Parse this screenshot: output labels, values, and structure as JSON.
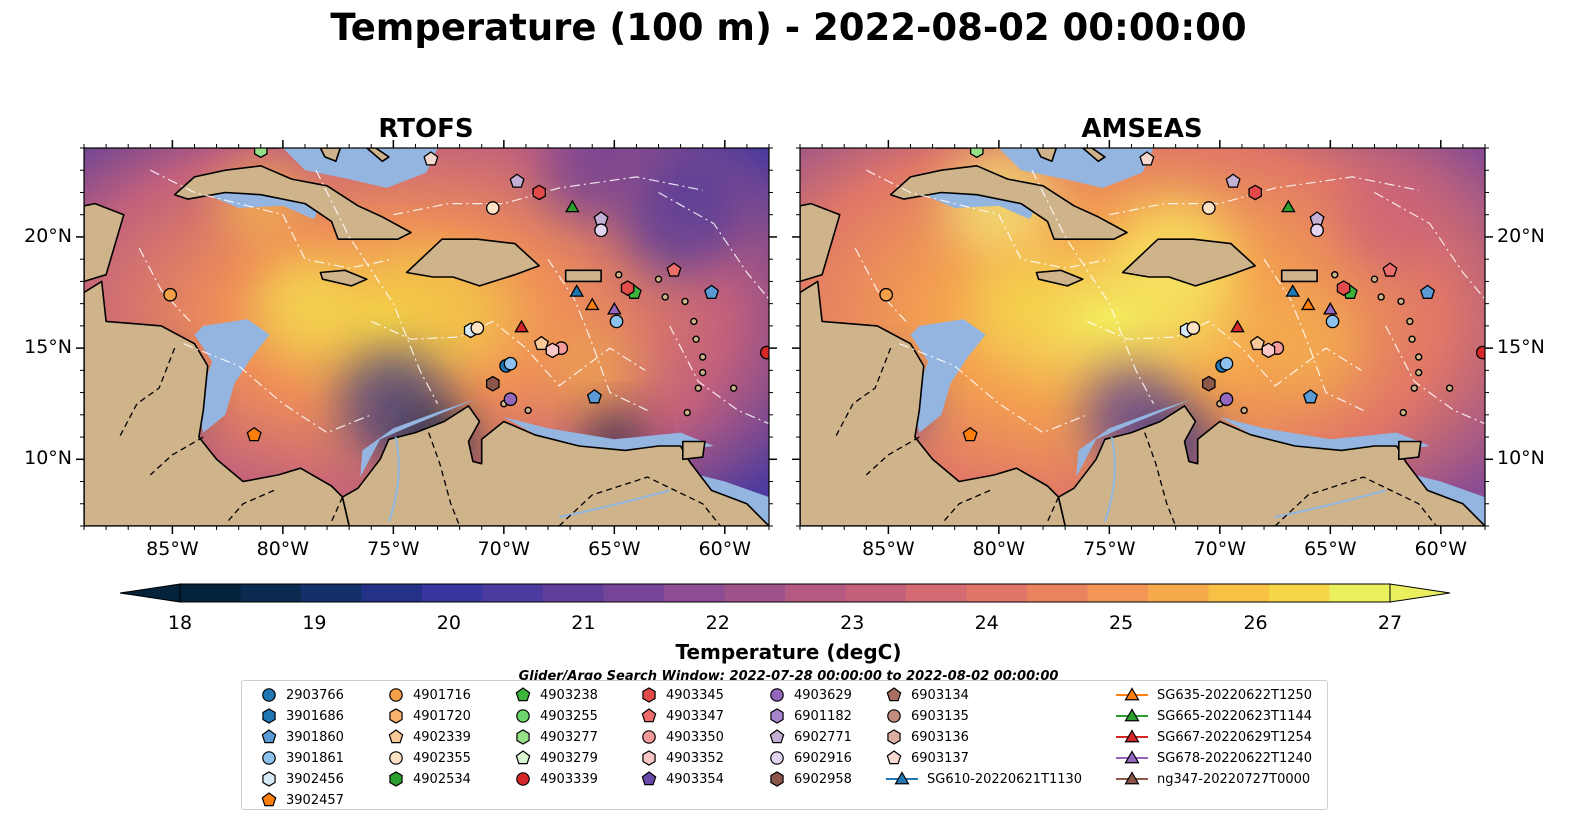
{
  "title": "Temperature (100 m) - 2022-08-02 00:00:00",
  "panels": [
    {
      "title": "RTOFS",
      "variant": "warm"
    },
    {
      "title": "AMSEAS",
      "variant": "hot"
    }
  ],
  "map": {
    "lon_range": [
      -89,
      -58
    ],
    "lat_range": [
      7,
      24
    ],
    "x_ticks": [
      "85°W",
      "80°W",
      "75°W",
      "70°W",
      "65°W",
      "60°W"
    ],
    "x_tick_values": [
      -85,
      -80,
      -75,
      -70,
      -65,
      -60
    ],
    "y_ticks": [
      "20°N",
      "15°N",
      "10°N"
    ],
    "y_tick_values": [
      20,
      15,
      10
    ],
    "land_color": "#cfb38a",
    "shelf_color": "#93b5e0"
  },
  "colorbar": {
    "label": "Temperature (degC)",
    "min": 18,
    "max": 27,
    "ticks": [
      "18",
      "19",
      "20",
      "21",
      "22",
      "23",
      "24",
      "25",
      "26",
      "27"
    ],
    "tick_values": [
      18,
      19,
      20,
      21,
      22,
      23,
      24,
      25,
      26,
      27
    ],
    "colors": [
      "#04223a",
      "#0b2a4f",
      "#13306a",
      "#233287",
      "#3a36a0",
      "#4c3a9e",
      "#613e9a",
      "#774598",
      "#8c4d93",
      "#a0538a",
      "#b45a82",
      "#c5607a",
      "#d46a72",
      "#e0766a",
      "#ea845f",
      "#f29556",
      "#f7aa4c",
      "#f9c046",
      "#f6d646",
      "#eaef5e"
    ]
  },
  "search_window": "Glider/Argo Search Window: 2022-07-28 00:00:00 to 2022-08-02 00:00:00",
  "legend": [
    {
      "label": "2903766",
      "shape": "circle",
      "color": "#1f77b4"
    },
    {
      "label": "3901686",
      "shape": "hexagon",
      "color": "#1f77b4"
    },
    {
      "label": "3901860",
      "shape": "pentagon",
      "color": "#5b9bd5"
    },
    {
      "label": "3901861",
      "shape": "circle",
      "color": "#8ec2ee"
    },
    {
      "label": "3902456",
      "shape": "hexagon",
      "color": "#d6eaf8"
    },
    {
      "label": "3902457",
      "shape": "pentagon",
      "color": "#ff7f0e"
    },
    {
      "label": "4901716",
      "shape": "circle",
      "color": "#f4a048"
    },
    {
      "label": "4901720",
      "shape": "hexagon",
      "color": "#f7b26b"
    },
    {
      "label": "4902339",
      "shape": "pentagon",
      "color": "#f9c999"
    },
    {
      "label": "4902355",
      "shape": "circle",
      "color": "#fde2c6"
    },
    {
      "label": "4902534",
      "shape": "hexagon",
      "color": "#2ca02c"
    },
    {
      "label": "4903238",
      "shape": "pentagon",
      "color": "#3cb43c"
    },
    {
      "label": "4903255",
      "shape": "circle",
      "color": "#6cd46c"
    },
    {
      "label": "4903277",
      "shape": "hexagon",
      "color": "#98df8a"
    },
    {
      "label": "4903279",
      "shape": "pentagon",
      "color": "#d9f5d0"
    },
    {
      "label": "4903339",
      "shape": "circle",
      "color": "#d62728"
    },
    {
      "label": "4903345",
      "shape": "hexagon",
      "color": "#e34a4a"
    },
    {
      "label": "4903347",
      "shape": "pentagon",
      "color": "#ec6b6b"
    },
    {
      "label": "4903350",
      "shape": "circle",
      "color": "#f59a9a"
    },
    {
      "label": "4903352",
      "shape": "hexagon",
      "color": "#fbc6c6"
    },
    {
      "label": "4903354",
      "shape": "pentagon",
      "color": "#6a4aa8"
    },
    {
      "label": "4903629",
      "shape": "circle",
      "color": "#9467bd"
    },
    {
      "label": "6901182",
      "shape": "hexagon",
      "color": "#a785cc"
    },
    {
      "label": "6902771",
      "shape": "pentagon",
      "color": "#c5b0d5"
    },
    {
      "label": "6902916",
      "shape": "circle",
      "color": "#e2d4f0"
    },
    {
      "label": "6902958",
      "shape": "hexagon",
      "color": "#8c564b"
    },
    {
      "label": "6903134",
      "shape": "pentagon",
      "color": "#a86f62"
    },
    {
      "label": "6903135",
      "shape": "circle",
      "color": "#c08c80"
    },
    {
      "label": "6903136",
      "shape": "hexagon",
      "color": "#dbaea3"
    },
    {
      "label": "6903137",
      "shape": "pentagon",
      "color": "#f6d8cf"
    },
    {
      "label": "SG610-20220621T1130",
      "shape": "triangle-line",
      "color": "#1f77b4"
    },
    {
      "label": "SG635-20220622T1250",
      "shape": "triangle-line",
      "color": "#ff7f0e"
    },
    {
      "label": "SG665-20220623T1144",
      "shape": "triangle-line",
      "color": "#2ca02c"
    },
    {
      "label": "SG667-20220629T1254",
      "shape": "triangle-line",
      "color": "#d62728"
    },
    {
      "label": "SG678-20220622T1240",
      "shape": "triangle-line",
      "color": "#9467bd"
    },
    {
      "label": "ng347-20220727T0000",
      "shape": "triangle-line",
      "color": "#8c564b"
    }
  ],
  "observations": [
    {
      "id": "4901716",
      "lon": -85.1,
      "lat": 17.4
    },
    {
      "id": "3902457",
      "lon": -81.3,
      "lat": 11.1
    },
    {
      "id": "4903277",
      "lon": -81.0,
      "lat": 23.9
    },
    {
      "id": "6903137",
      "lon": -73.3,
      "lat": 23.5
    },
    {
      "id": "4902355",
      "lon": -70.5,
      "lat": 21.3
    },
    {
      "id": "6902771",
      "lon": -69.4,
      "lat": 22.5
    },
    {
      "id": "4903345",
      "lon": -68.4,
      "lat": 22.0
    },
    {
      "id": "SG665-20220623T1144",
      "lon": -66.9,
      "lat": 21.3
    },
    {
      "id": "6902771",
      "lon": -65.6,
      "lat": 20.8
    },
    {
      "id": "6902916",
      "lon": -65.6,
      "lat": 20.3
    },
    {
      "id": "4903347",
      "lon": -62.3,
      "lat": 18.5
    },
    {
      "id": "3901860",
      "lon": -60.6,
      "lat": 17.5
    },
    {
      "id": "SG610-20220621T1130",
      "lon": -66.7,
      "lat": 17.5
    },
    {
      "id": "SG635-20220622T1250",
      "lon": -66.0,
      "lat": 16.9
    },
    {
      "id": "SG678-20220622T1240",
      "lon": -65.0,
      "lat": 16.7
    },
    {
      "id": "4903238",
      "lon": -64.1,
      "lat": 17.5
    },
    {
      "id": "4903345",
      "lon": -64.4,
      "lat": 17.7
    },
    {
      "id": "3901861",
      "lon": -64.9,
      "lat": 16.2
    },
    {
      "id": "3902456",
      "lon": -71.5,
      "lat": 15.8
    },
    {
      "id": "4902355",
      "lon": -71.2,
      "lat": 15.9
    },
    {
      "id": "SG667-20220629T1254",
      "lon": -69.2,
      "lat": 15.9
    },
    {
      "id": "4902339",
      "lon": -68.3,
      "lat": 15.2
    },
    {
      "id": "4903350",
      "lon": -67.4,
      "lat": 15.0
    },
    {
      "id": "4903352",
      "lon": -67.8,
      "lat": 14.9
    },
    {
      "id": "2903766",
      "lon": -69.9,
      "lat": 14.2
    },
    {
      "id": "3901861",
      "lon": -69.7,
      "lat": 14.3
    },
    {
      "id": "6902958",
      "lon": -70.5,
      "lat": 13.4
    },
    {
      "id": "4903629",
      "lon": -69.7,
      "lat": 12.7
    },
    {
      "id": "3901860",
      "lon": -65.9,
      "lat": 12.8
    },
    {
      "id": "4903339",
      "lon": -58.1,
      "lat": 14.8
    }
  ]
}
